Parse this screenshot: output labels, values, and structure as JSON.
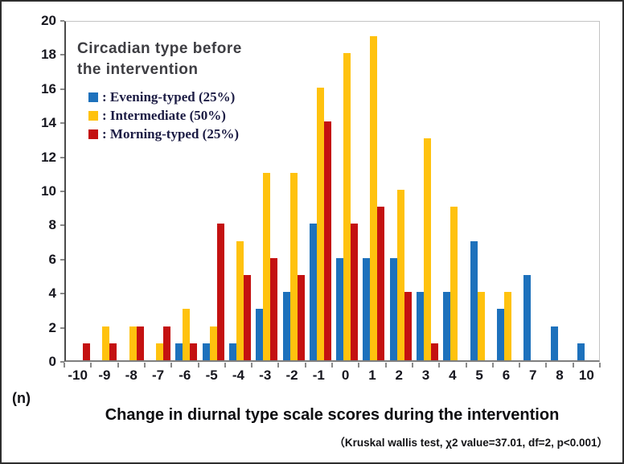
{
  "chart_data": {
    "type": "bar",
    "title": "Circadian type before the intervention",
    "categories": [
      "-10",
      "-9",
      "-8",
      "-7",
      "-6",
      "-5",
      "-4",
      "-3",
      "-2",
      "-1",
      "0",
      "1",
      "2",
      "3",
      "4",
      "5",
      "6",
      "7",
      "8",
      "10"
    ],
    "series": [
      {
        "name": "Evening-typed (25%)",
        "legend_label": ": Evening-typed (25%)",
        "color": "#1d71bc",
        "values": [
          0,
          0,
          0,
          0,
          1,
          1,
          1,
          3,
          4,
          8,
          6,
          6,
          6,
          4,
          4,
          7,
          3,
          5,
          2,
          1
        ]
      },
      {
        "name": "Intermediate (50%)",
        "legend_label": ": Intermediate (50%)",
        "color": "#ffc20e",
        "values": [
          0,
          2,
          2,
          1,
          3,
          2,
          7,
          11,
          11,
          16,
          18,
          19,
          10,
          13,
          9,
          4,
          4,
          0,
          0,
          0
        ]
      },
      {
        "name": "Morning-typed (25%)",
        "legend_label": ": Morning-typed (25%)",
        "color": "#c41111",
        "values": [
          1,
          1,
          2,
          2,
          1,
          8,
          5,
          6,
          5,
          14,
          8,
          9,
          4,
          1,
          0,
          0,
          0,
          0,
          0,
          0
        ]
      }
    ],
    "ylim": [
      0,
      20
    ],
    "ytick_step": 2,
    "grid": false,
    "legend_position": "upper-left",
    "xlabel": "Change in diurnal type scale scores during the intervention",
    "ylabel": "(n)",
    "footnote": "（Kruskal wallis test, χ2 value=37.01, df=2, p<0.001）"
  },
  "legend": {
    "title_line1": "Circadian type before",
    "title_line2": "the intervention"
  }
}
